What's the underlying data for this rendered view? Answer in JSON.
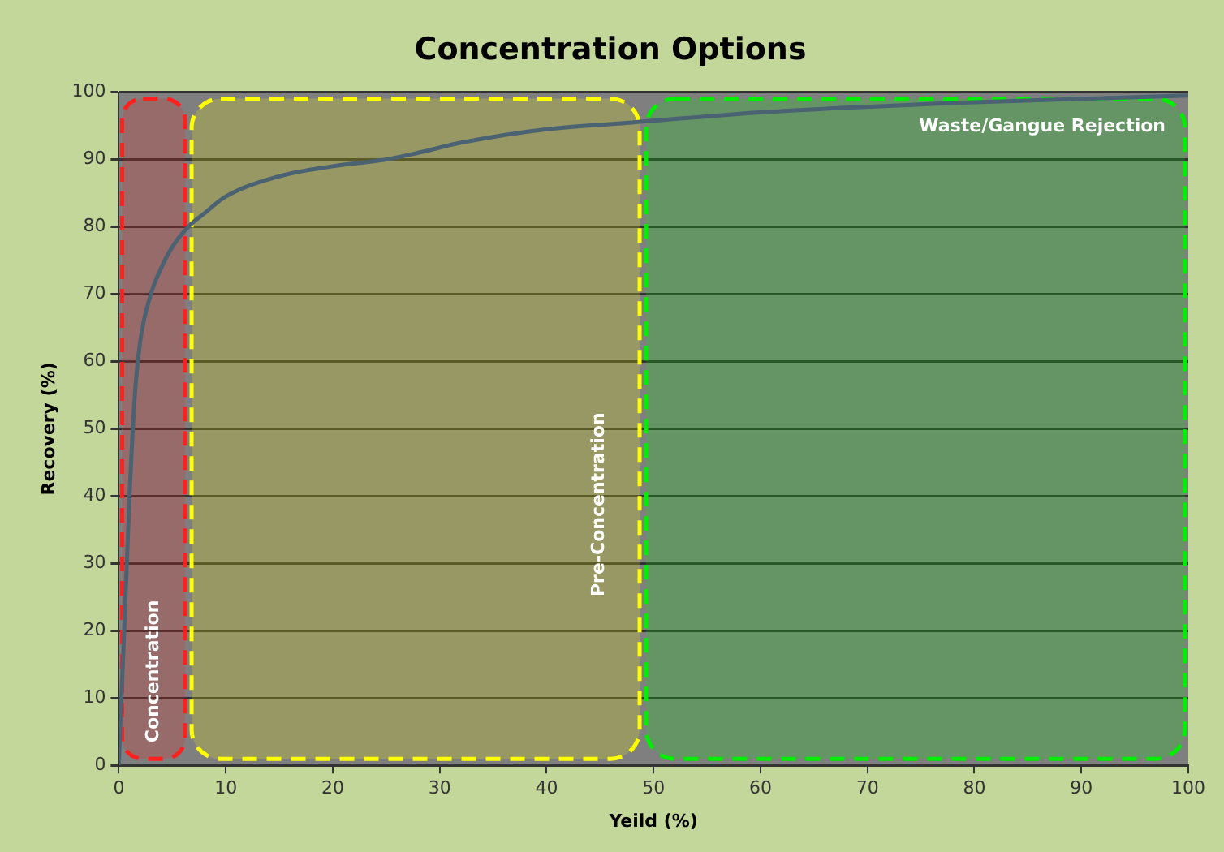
{
  "chart_data": {
    "type": "line",
    "title": "Concentration Options",
    "xlabel": "Yeild (%)",
    "ylabel": "Recovery (%)",
    "x": [
      0,
      0.5,
      1,
      1.5,
      2,
      3,
      4,
      5,
      6.5,
      8,
      10,
      15,
      20,
      25,
      28,
      32,
      40,
      48,
      60,
      80,
      100
    ],
    "series": [
      {
        "color": "#4a6272",
        "values": [
          0,
          20,
          40,
          55,
          63,
          70,
          74,
          77,
          80,
          82,
          84.5,
          87.5,
          89,
          90,
          91,
          92.5,
          94.5,
          95.5,
          97,
          98.5,
          99.5
        ]
      }
    ],
    "xlim": [
      0,
      100
    ],
    "ylim": [
      0,
      100
    ],
    "xticks": [
      0,
      10,
      20,
      30,
      40,
      50,
      60,
      70,
      80,
      90,
      100
    ],
    "yticks": [
      0,
      10,
      20,
      30,
      40,
      50,
      60,
      70,
      80,
      90,
      100
    ],
    "bands": [
      {
        "axis": "x",
        "from": 0,
        "to": 6.5,
        "label": "Concentration",
        "color": "#ff2020"
      },
      {
        "axis": "x",
        "from": 6.5,
        "to": 49,
        "label": "Pre-Concentration",
        "color": "#ffff00"
      },
      {
        "axis": "x",
        "from": 49,
        "to": 100,
        "label": "Waste/Gangue Rejection",
        "color": "#00ee00"
      }
    ],
    "grid": "y",
    "legend": false,
    "marker": "none",
    "line_style": "solid"
  }
}
